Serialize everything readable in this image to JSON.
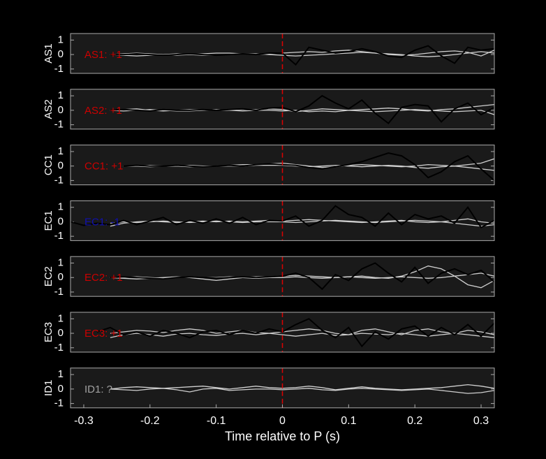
{
  "chart_data": [
    {
      "type": "line",
      "ylabel": "AS1",
      "annotation": {
        "text": "AS1: +1",
        "color": "#cc0000"
      },
      "vline": {
        "x": 0,
        "color": "#dd0000"
      },
      "xlim": [
        -0.32,
        0.32
      ],
      "ylim": [
        -1.3,
        1.45
      ],
      "yticks": [
        -1,
        0,
        1
      ],
      "x": [
        -0.32,
        -0.3,
        -0.28,
        -0.26,
        -0.24,
        -0.22,
        -0.2,
        -0.18,
        -0.16,
        -0.14,
        -0.12,
        -0.1,
        -0.08,
        -0.06,
        -0.04,
        -0.02,
        0,
        0.02,
        0.04,
        0.06,
        0.08,
        0.1,
        0.12,
        0.14,
        0.16,
        0.18,
        0.2,
        0.22,
        0.24,
        0.26,
        0.28,
        0.3,
        0.32
      ],
      "series": [
        {
          "color": "#d0d0d0",
          "values": [
            null,
            null,
            null,
            0,
            0.05,
            0.1,
            0.05,
            0,
            -0.05,
            0,
            0.05,
            0.1,
            0.1,
            0.05,
            0,
            0.05,
            0.1,
            0.15,
            0.2,
            0.15,
            0.25,
            0.3,
            0.2,
            0.1,
            0,
            -0.05,
            0,
            0.1,
            0.2,
            0.25,
            0.15,
            -0.1,
            0.3
          ]
        },
        {
          "color": "#d0d0d0",
          "values": [
            null,
            null,
            null,
            0,
            -0.05,
            -0.1,
            -0.05,
            0,
            0.05,
            0,
            -0.05,
            -0.05,
            0,
            0.05,
            0.05,
            0,
            -0.05,
            -0.1,
            -0.05,
            0,
            0.05,
            0.1,
            0.15,
            0.1,
            0.05,
            0,
            -0.1,
            -0.15,
            -0.1,
            0,
            0.1,
            0.2,
            0.1
          ]
        },
        {
          "color": "#000000",
          "values": [
            null,
            null,
            null,
            0,
            0,
            0.05,
            0,
            -0.05,
            0,
            0.05,
            0,
            -0.05,
            0,
            0.05,
            0,
            0.1,
            0.1,
            -0.7,
            0.5,
            0.3,
            0.1,
            0.2,
            0.4,
            0.2,
            -0.1,
            -0.2,
            0.3,
            0.6,
            -0.1,
            -0.6,
            0.5,
            0.3,
            0.4
          ]
        }
      ]
    },
    {
      "type": "line",
      "ylabel": "AS2",
      "annotation": {
        "text": "AS2: +1",
        "color": "#cc0000"
      },
      "vline": {
        "x": 0,
        "color": "#dd0000"
      },
      "xlim": [
        -0.32,
        0.32
      ],
      "ylim": [
        -1.3,
        1.45
      ],
      "yticks": [
        -1,
        0,
        1
      ],
      "x": [
        -0.32,
        -0.3,
        -0.28,
        -0.26,
        -0.24,
        -0.22,
        -0.2,
        -0.18,
        -0.16,
        -0.14,
        -0.12,
        -0.1,
        -0.08,
        -0.06,
        -0.04,
        -0.02,
        0,
        0.02,
        0.04,
        0.06,
        0.08,
        0.1,
        0.12,
        0.14,
        0.16,
        0.18,
        0.2,
        0.22,
        0.24,
        0.26,
        0.28,
        0.3,
        0.32
      ],
      "series": [
        {
          "color": "#d0d0d0",
          "values": [
            null,
            null,
            null,
            0,
            0.05,
            0.1,
            0,
            -0.05,
            0,
            0.05,
            0.05,
            0,
            0,
            0.05,
            0.05,
            0.1,
            0.05,
            -0.1,
            0,
            0.1,
            0.05,
            0,
            0.05,
            0.1,
            0.15,
            0.1,
            0,
            -0.05,
            0.05,
            0.1,
            0.2,
            0.3,
            0.4
          ]
        },
        {
          "color": "#d0d0d0",
          "values": [
            null,
            null,
            null,
            0,
            -0.05,
            0,
            0.05,
            0,
            -0.05,
            -0.05,
            0,
            0.05,
            0,
            -0.05,
            0,
            0,
            -0.05,
            0,
            -0.1,
            -0.05,
            -0.1,
            0,
            -0.05,
            -0.1,
            -0.05,
            0,
            0.05,
            0,
            -0.05,
            -0.1,
            -0.05,
            0,
            -0.3
          ]
        },
        {
          "color": "#000000",
          "values": [
            null,
            null,
            null,
            0,
            0.05,
            0,
            -0.05,
            0.05,
            0,
            0,
            0.05,
            0,
            0.05,
            0.1,
            0,
            0.15,
            0.2,
            -0.1,
            0.3,
            1.0,
            0.5,
            0.1,
            0.7,
            -0.2,
            -0.9,
            0.2,
            0.4,
            0.3,
            -0.8,
            0.1,
            0.5,
            -0.3,
            0.2
          ]
        }
      ]
    },
    {
      "type": "line",
      "ylabel": "CC1",
      "annotation": {
        "text": "CC1: +1",
        "color": "#cc0000"
      },
      "vline": {
        "x": 0,
        "color": "#dd0000"
      },
      "xlim": [
        -0.32,
        0.32
      ],
      "ylim": [
        -1.3,
        1.45
      ],
      "yticks": [
        -1,
        0,
        1
      ],
      "x": [
        -0.32,
        -0.3,
        -0.28,
        -0.26,
        -0.24,
        -0.22,
        -0.2,
        -0.18,
        -0.16,
        -0.14,
        -0.12,
        -0.1,
        -0.08,
        -0.06,
        -0.04,
        -0.02,
        0,
        0.02,
        0.04,
        0.06,
        0.08,
        0.1,
        0.12,
        0.14,
        0.16,
        0.18,
        0.2,
        0.22,
        0.24,
        0.26,
        0.28,
        0.3,
        0.32
      ],
      "series": [
        {
          "color": "#d0d0d0",
          "values": [
            null,
            null,
            null,
            null,
            0,
            0,
            0.05,
            0,
            0,
            0.05,
            0,
            0,
            0.05,
            0.1,
            0.1,
            0.15,
            0.2,
            0.1,
            0,
            -0.1,
            -0.05,
            0.05,
            0.1,
            0.05,
            0,
            -0.05,
            0,
            0.1,
            0.05,
            0,
            0.1,
            0.2,
            0.5
          ]
        },
        {
          "color": "#d0d0d0",
          "values": [
            null,
            null,
            null,
            null,
            0,
            0,
            -0.05,
            0,
            0,
            -0.05,
            0,
            0,
            0,
            0,
            0.05,
            0.05,
            0.05,
            0,
            -0.05,
            0,
            0.05,
            0,
            -0.05,
            0,
            0.05,
            0,
            -0.1,
            -0.15,
            -0.05,
            0,
            -0.1,
            -0.2,
            -0.3
          ]
        },
        {
          "color": "#000000",
          "values": [
            null,
            null,
            null,
            null,
            0,
            0.05,
            0,
            0,
            0.05,
            0,
            -0.05,
            0,
            0.05,
            0,
            0.1,
            0.15,
            0.1,
            0.05,
            -0.1,
            -0.2,
            -0.05,
            0.1,
            0.3,
            0.6,
            0.9,
            0.7,
            0.1,
            -0.8,
            -0.4,
            0.3,
            0.7,
            -0.2,
            -1.0
          ]
        }
      ]
    },
    {
      "type": "line",
      "ylabel": "EC1",
      "annotation": {
        "text": "EC1: -1",
        "color": "#1010b0"
      },
      "vline": {
        "x": 0,
        "color": "#dd0000"
      },
      "xlim": [
        -0.32,
        0.32
      ],
      "ylim": [
        -1.3,
        1.45
      ],
      "yticks": [
        -1,
        0,
        1
      ],
      "x": [
        -0.32,
        -0.3,
        -0.28,
        -0.26,
        -0.24,
        -0.22,
        -0.2,
        -0.18,
        -0.16,
        -0.14,
        -0.12,
        -0.1,
        -0.08,
        -0.06,
        -0.04,
        -0.02,
        0,
        0.02,
        0.04,
        0.06,
        0.08,
        0.1,
        0.12,
        0.14,
        0.16,
        0.18,
        0.2,
        0.22,
        0.24,
        0.26,
        0.28,
        0.3,
        0.32
      ],
      "series": [
        {
          "color": "#d0d0d0",
          "values": [
            null,
            null,
            null,
            -0.3,
            -0.1,
            0,
            0.05,
            0,
            -0.05,
            0,
            0.05,
            0,
            0.05,
            0,
            0.05,
            0.1,
            0.05,
            0.1,
            0.15,
            0.1,
            0.05,
            0,
            -0.05,
            0,
            0.05,
            0.1,
            0,
            -0.05,
            0,
            0.1,
            0.2,
            0,
            -0.1
          ]
        },
        {
          "color": "#d0d0d0",
          "values": [
            null,
            null,
            null,
            -0.1,
            0,
            -0.05,
            0,
            0.05,
            0,
            -0.05,
            0,
            0.05,
            0,
            -0.05,
            0,
            0,
            0,
            -0.05,
            0,
            0.05,
            0.1,
            0.05,
            0,
            -0.05,
            0,
            0.05,
            0.1,
            0.05,
            0,
            -0.1,
            -0.2,
            -0.3,
            -0.2
          ]
        },
        {
          "color": "#000000",
          "values": [
            0,
            -0.25,
            -0.1,
            -0.2,
            0.1,
            -0.2,
            0.05,
            0.3,
            -0.2,
            0.1,
            -0.1,
            0.2,
            -0.1,
            0.3,
            -0.2,
            0.1,
            0.05,
            0.4,
            -0.3,
            0.1,
            1.1,
            0.5,
            0.3,
            -0.3,
            0.6,
            -0.2,
            0.5,
            0.2,
            0.4,
            -0.1,
            1.0,
            -0.4,
            0.1
          ]
        }
      ]
    },
    {
      "type": "line",
      "ylabel": "EC2",
      "annotation": {
        "text": "EC2: +1",
        "color": "#cc0000"
      },
      "vline": {
        "x": 0,
        "color": "#dd0000"
      },
      "xlim": [
        -0.32,
        0.32
      ],
      "ylim": [
        -1.3,
        1.45
      ],
      "yticks": [
        -1,
        0,
        1
      ],
      "x": [
        -0.32,
        -0.3,
        -0.28,
        -0.26,
        -0.24,
        -0.22,
        -0.2,
        -0.18,
        -0.16,
        -0.14,
        -0.12,
        -0.1,
        -0.08,
        -0.06,
        -0.04,
        -0.02,
        0,
        0.02,
        0.04,
        0.06,
        0.08,
        0.1,
        0.12,
        0.14,
        0.16,
        0.18,
        0.2,
        0.22,
        0.24,
        0.26,
        0.28,
        0.3,
        0.32
      ],
      "series": [
        {
          "color": "#d0d0d0",
          "values": [
            null,
            null,
            null,
            0,
            -0.05,
            -0.1,
            -0.05,
            0,
            0.05,
            0,
            -0.1,
            -0.2,
            -0.1,
            0,
            0.05,
            0.05,
            0.1,
            0.15,
            0.1,
            0.05,
            0,
            0.05,
            0.1,
            0,
            -0.05,
            0.1,
            0.4,
            0.8,
            0.6,
            0.1,
            -0.5,
            -0.7,
            -0.2
          ]
        },
        {
          "color": "#d0d0d0",
          "values": [
            null,
            null,
            null,
            0,
            0,
            0.05,
            0,
            -0.05,
            0,
            0.05,
            0,
            0,
            0.05,
            0,
            -0.05,
            0,
            0,
            0.05,
            0,
            -0.05,
            0,
            0.05,
            0,
            -0.05,
            0,
            0.05,
            0,
            -0.05,
            0,
            0.1,
            0.2,
            0.3,
            0.1
          ]
        },
        {
          "color": "#000000",
          "values": [
            null,
            null,
            null,
            0,
            0.05,
            0,
            -0.05,
            -0.1,
            0,
            0.05,
            0,
            -0.05,
            0,
            0.05,
            0,
            0.05,
            0.1,
            0.3,
            0,
            -0.8,
            0.2,
            -0.2,
            0.6,
            1.0,
            0.3,
            -0.3,
            0.7,
            -0.4,
            0.3,
            0.6,
            0.2,
            0.5,
            -0.3
          ]
        }
      ]
    },
    {
      "type": "line",
      "ylabel": "EC3",
      "annotation": {
        "text": "EC3: +1",
        "color": "#cc0000"
      },
      "vline": {
        "x": 0,
        "color": "#dd0000"
      },
      "xlim": [
        -0.32,
        0.32
      ],
      "ylim": [
        -1.3,
        1.45
      ],
      "yticks": [
        -1,
        0,
        1
      ],
      "x": [
        -0.32,
        -0.3,
        -0.28,
        -0.26,
        -0.24,
        -0.22,
        -0.2,
        -0.18,
        -0.16,
        -0.14,
        -0.12,
        -0.1,
        -0.08,
        -0.06,
        -0.04,
        -0.02,
        0,
        0.02,
        0.04,
        0.06,
        0.08,
        0.1,
        0.12,
        0.14,
        0.16,
        0.18,
        0.2,
        0.22,
        0.24,
        0.26,
        0.28,
        0.3,
        0.32
      ],
      "series": [
        {
          "color": "#d0d0d0",
          "values": [
            null,
            null,
            null,
            0,
            0.1,
            0.2,
            0.15,
            0.05,
            0.2,
            0.3,
            0.2,
            0,
            0.1,
            0.2,
            0.05,
            0,
            0.1,
            0.2,
            0.3,
            0.2,
            0,
            -0.1,
            0.2,
            0.3,
            0.1,
            -0.1,
            0.2,
            0.3,
            0.1,
            0,
            0.2,
            0.1,
            -0.1
          ]
        },
        {
          "color": "#d0d0d0",
          "values": [
            null,
            null,
            null,
            -0.3,
            -0.1,
            0,
            -0.1,
            -0.2,
            -0.05,
            0,
            -0.1,
            -0.15,
            -0.05,
            0,
            -0.1,
            0,
            -0.1,
            -0.2,
            -0.1,
            0,
            -0.15,
            -0.1,
            0,
            -0.05,
            -0.1,
            0,
            -0.1,
            -0.2,
            -0.1,
            0,
            -0.1,
            -0.2,
            -0.3
          ]
        },
        {
          "color": "#000000",
          "values": [
            null,
            null,
            0.1,
            0.4,
            -0.1,
            0.1,
            -0.2,
            0.2,
            0,
            -0.3,
            0.1,
            0.2,
            -0.1,
            0.2,
            0,
            0.3,
            0.1,
            0.6,
            1.0,
            0.2,
            -0.3,
            0.4,
            -0.9,
            0.1,
            -0.4,
            0.3,
            0.5,
            -0.2,
            0.4,
            -0.1,
            0.6,
            -0.2,
            0.7
          ]
        }
      ]
    },
    {
      "type": "line",
      "ylabel": "ID1",
      "annotation": {
        "text": "ID1: ?",
        "color": "#a0a0a0"
      },
      "vline": {
        "x": 0,
        "color": "#dd0000"
      },
      "xlim": [
        -0.32,
        0.32
      ],
      "ylim": [
        -1.3,
        1.45
      ],
      "yticks": [
        -1,
        0,
        1
      ],
      "xticks": [
        -0.3,
        -0.2,
        -0.1,
        0,
        0.1,
        0.2,
        0.3
      ],
      "xlabel": "Time relative to P (s)",
      "x": [
        -0.32,
        -0.3,
        -0.28,
        -0.26,
        -0.24,
        -0.22,
        -0.2,
        -0.18,
        -0.16,
        -0.14,
        -0.12,
        -0.1,
        -0.08,
        -0.06,
        -0.04,
        -0.02,
        0,
        0.02,
        0.04,
        0.06,
        0.08,
        0.1,
        0.12,
        0.14,
        0.16,
        0.18,
        0.2,
        0.22,
        0.24,
        0.26,
        0.28,
        0.3,
        0.32
      ],
      "series": [
        {
          "color": "#d0d0d0",
          "values": [
            null,
            null,
            null,
            0,
            0.1,
            0.15,
            0.1,
            0.05,
            0.1,
            0.15,
            0.2,
            0.1,
            0,
            0.1,
            0.2,
            0.1,
            0.05,
            0.1,
            0.2,
            0.1,
            -0.05,
            0.05,
            0.15,
            0.05,
            0,
            -0.05,
            0,
            0.05,
            0.1,
            0.2,
            0.3,
            0.2,
            0.05
          ]
        },
        {
          "color": "#d0d0d0",
          "values": [
            null,
            null,
            null,
            0,
            -0.05,
            -0.1,
            0,
            0.05,
            -0.05,
            -0.2,
            0,
            0.05,
            -0.1,
            -0.05,
            0,
            0,
            -0.05,
            0,
            0.05,
            -0.05,
            -0.1,
            0,
            0.05,
            0,
            -0.05,
            -0.1,
            -0.05,
            0,
            -0.1,
            -0.2,
            -0.3,
            -0.25,
            -0.1
          ]
        }
      ]
    }
  ]
}
